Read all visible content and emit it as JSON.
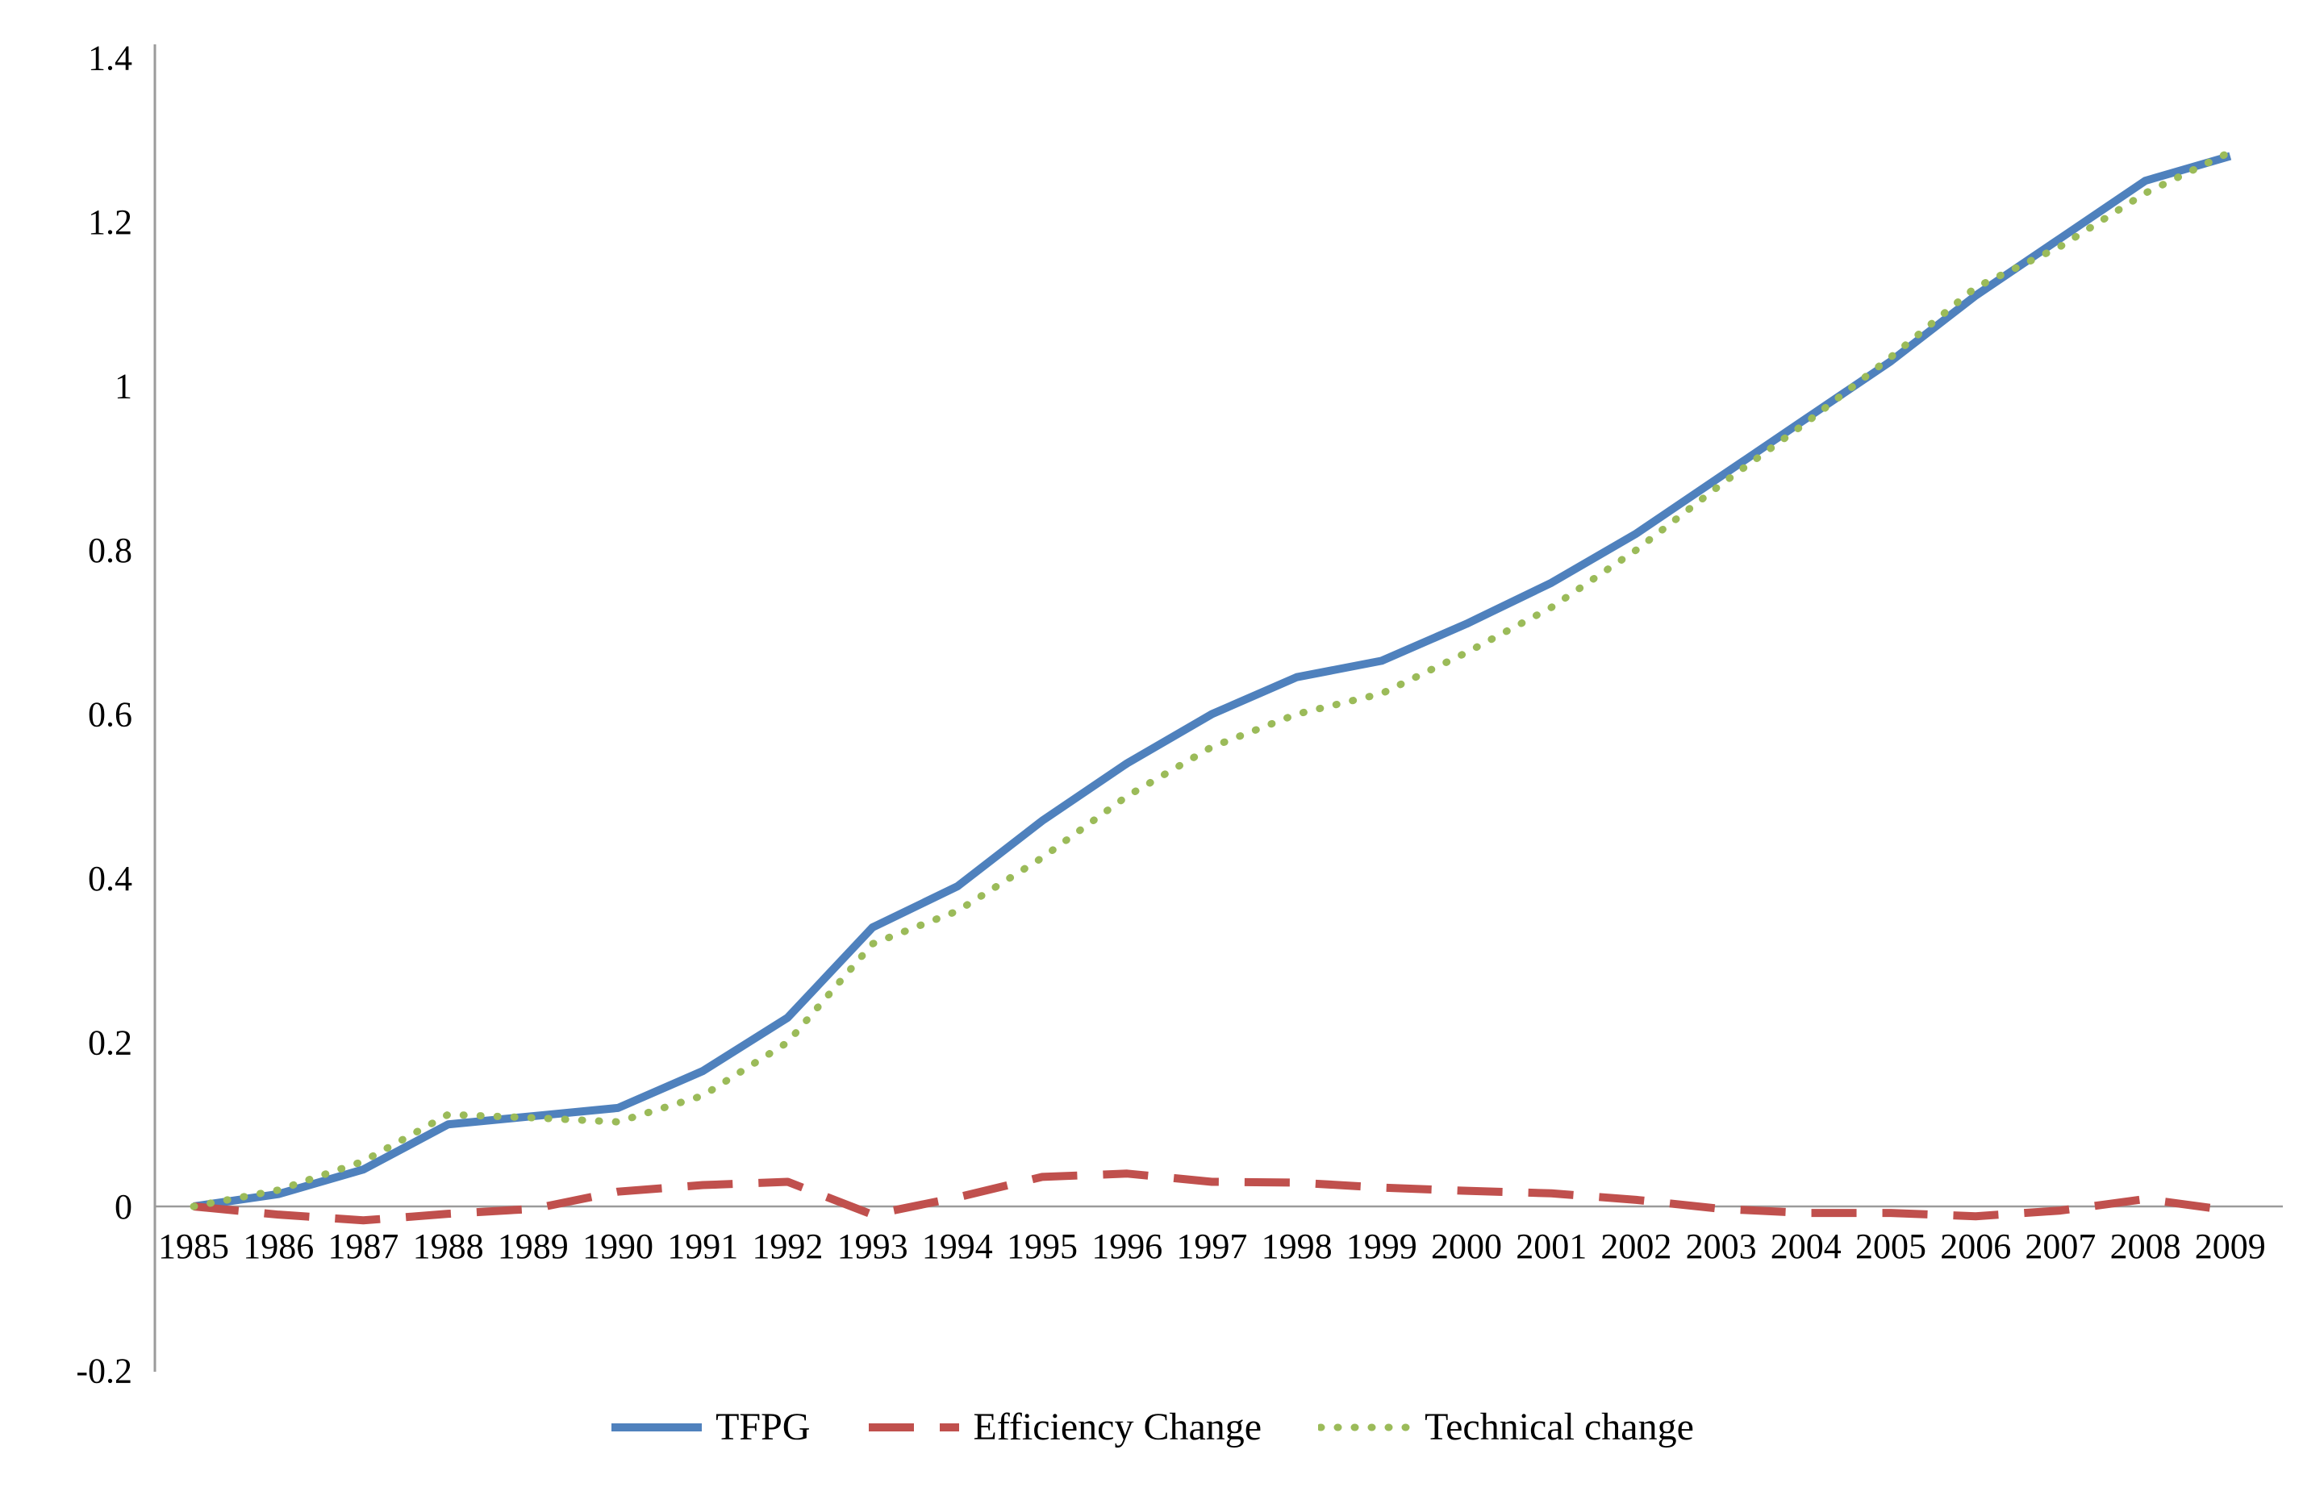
{
  "chart_data": {
    "type": "line",
    "title": "",
    "xlabel": "",
    "ylabel": "",
    "x": [
      1985,
      1986,
      1987,
      1988,
      1989,
      1990,
      1991,
      1992,
      1993,
      1994,
      1995,
      1996,
      1997,
      1998,
      1999,
      2000,
      2001,
      2002,
      2003,
      2004,
      2005,
      2006,
      2007,
      2008,
      2009
    ],
    "series": [
      {
        "name": "TFPG",
        "color": "#4F81BD",
        "style": "solid",
        "values": [
          0.0,
          0.015,
          0.045,
          0.1,
          0.11,
          0.12,
          0.165,
          0.23,
          0.34,
          0.39,
          0.47,
          0.54,
          0.6,
          0.645,
          0.665,
          0.71,
          0.76,
          0.82,
          0.89,
          0.96,
          1.03,
          1.11,
          1.18,
          1.25,
          1.28
        ]
      },
      {
        "name": "Efficiency Change",
        "color": "#C0504D",
        "style": "dashed",
        "values": [
          0.0,
          -0.01,
          -0.017,
          -0.009,
          -0.003,
          0.018,
          0.026,
          0.03,
          -0.01,
          0.011,
          0.036,
          0.04,
          0.03,
          0.029,
          0.023,
          0.019,
          0.016,
          0.008,
          -0.003,
          -0.008,
          -0.008,
          -0.012,
          -0.005,
          0.009,
          -0.005
        ]
      },
      {
        "name": "Technical change",
        "color": "#9BBB59",
        "style": "dotted",
        "values": [
          0.0,
          0.02,
          0.055,
          0.112,
          0.108,
          0.103,
          0.135,
          0.2,
          0.32,
          0.36,
          0.425,
          0.5,
          0.56,
          0.6,
          0.625,
          0.675,
          0.73,
          0.8,
          0.88,
          0.955,
          1.035,
          1.12,
          1.17,
          1.235,
          1.285
        ]
      }
    ],
    "ylim": [
      -0.2,
      1.4
    ],
    "ytick_step": 0.2,
    "ytick_labels": [
      "1.4",
      "1.2",
      "1",
      "0.8",
      "0.6",
      "0.4",
      "0.2",
      "0",
      "-0.2"
    ],
    "xtick_labels": [
      "1985",
      "1986",
      "1987",
      "1988",
      "1989",
      "1990",
      "1991",
      "1992",
      "1993",
      "1994",
      "1995",
      "1996",
      "1997",
      "1998",
      "1999",
      "2000",
      "2001",
      "2002",
      "2003",
      "2004",
      "2005",
      "2006",
      "2007",
      "2008",
      "2009"
    ],
    "grid": "zero-line-only",
    "legend_position": "bottom-center",
    "background_color": "#ffffff",
    "axis_color": "#9b9b9b",
    "text_color": "#000000"
  }
}
